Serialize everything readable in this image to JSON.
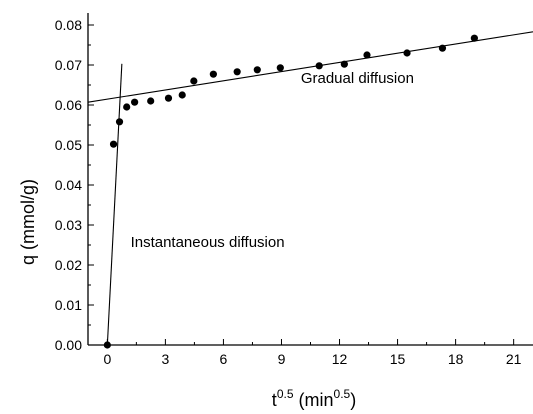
{
  "chart_data": {
    "type": "scatter",
    "xlabel": {
      "base": "t",
      "base_sup": "0.5",
      "unit": "min",
      "unit_sup": "0.5"
    },
    "ylabel": "q (mmol/g)",
    "xlim": [
      -1,
      22
    ],
    "ylim": [
      0,
      0.083
    ],
    "x_ticks": [
      0,
      3,
      6,
      9,
      12,
      15,
      18,
      21
    ],
    "x_tick_labels": [
      "0",
      "3",
      "6",
      "9",
      "12",
      "15",
      "18",
      "21"
    ],
    "y_ticks": [
      0.0,
      0.01,
      0.02,
      0.03,
      0.04,
      0.05,
      0.06,
      0.07,
      0.08
    ],
    "y_tick_labels": [
      "0.00",
      "0.01",
      "0.02",
      "0.03",
      "0.04",
      "0.05",
      "0.06",
      "0.07",
      "0.08"
    ],
    "grid": false,
    "series": [
      {
        "marker": "circle",
        "color": "#000000",
        "x": [
          0,
          0.32,
          0.63,
          1.0,
          1.41,
          2.24,
          3.16,
          3.87,
          4.47,
          5.48,
          6.71,
          7.75,
          8.94,
          10.95,
          12.25,
          13.42,
          15.49,
          17.32,
          18.97
        ],
        "y": [
          0.0,
          0.0502,
          0.0558,
          0.0595,
          0.0607,
          0.061,
          0.0617,
          0.0625,
          0.066,
          0.0677,
          0.0683,
          0.0688,
          0.0693,
          0.0698,
          0.0702,
          0.0725,
          0.073,
          0.0742,
          0.0767
        ]
      }
    ],
    "fit_lines": [
      {
        "x": [
          0,
          0.75
        ],
        "y": [
          0.0,
          0.0703
        ],
        "color": "#000000"
      },
      {
        "x": [
          -1,
          22
        ],
        "y": [
          0.0607,
          0.0783
        ],
        "color": "#000000"
      }
    ],
    "annotations": [
      {
        "text": "Gradual diffusion",
        "x": 10.0,
        "y": 0.0655
      },
      {
        "text": "Instantaneous diffusion",
        "x": 1.2,
        "y": 0.0245
      }
    ]
  }
}
